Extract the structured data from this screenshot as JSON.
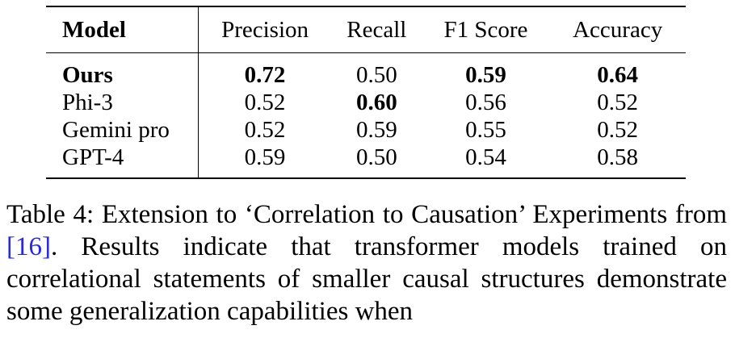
{
  "table": {
    "headers": [
      "Model",
      "Precision",
      "Recall",
      "F1 Score",
      "Accuracy"
    ],
    "rows": [
      {
        "model": "Ours",
        "precision": "0.72",
        "recall": "0.50",
        "f1": "0.59",
        "accuracy": "0.64"
      },
      {
        "model": "Phi-3",
        "precision": "0.52",
        "recall": "0.60",
        "f1": "0.56",
        "accuracy": "0.52"
      },
      {
        "model": "Gemini pro",
        "precision": "0.52",
        "recall": "0.59",
        "f1": "0.55",
        "accuracy": "0.52"
      },
      {
        "model": "GPT-4",
        "precision": "0.59",
        "recall": "0.50",
        "f1": "0.54",
        "accuracy": "0.58"
      }
    ]
  },
  "caption": {
    "label": "Table 4:",
    "text_before_cite": "Extension to ‘Correlation to Causation’ Experiments from ",
    "cite": "[16]",
    "text_after_cite": ". Results indicate that transformer models trained on correlational statements of smaller causal structures demonstrate some generalization capabilities when"
  }
}
